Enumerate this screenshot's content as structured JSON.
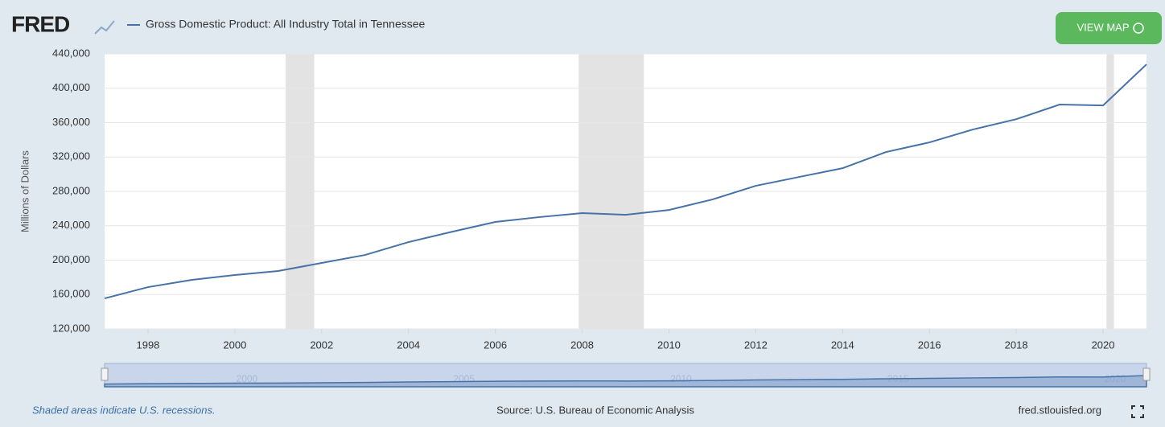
{
  "header": {
    "logo": "FRED",
    "button": "VIEW MAP"
  },
  "chart_data": {
    "type": "line",
    "title": "Gross Domestic Product: All Industry Total in Tennessee",
    "y_label": "Millions of Dollars",
    "x": [
      1997,
      1998,
      1999,
      2000,
      2001,
      2002,
      2003,
      2004,
      2005,
      2006,
      2007,
      2008,
      2009,
      2010,
      2011,
      2012,
      2013,
      2014,
      2015,
      2016,
      2017,
      2018,
      2019,
      2020,
      2021
    ],
    "series": [
      {
        "name": "Gross Domestic Product: All Industry Total in Tennessee",
        "color": "#4572a7",
        "values": [
          155500,
          168600,
          177000,
          182700,
          187400,
          196700,
          206000,
          221000,
          233000,
          244400,
          250000,
          254700,
          252800,
          258400,
          270600,
          286500,
          296800,
          307000,
          325800,
          337000,
          352000,
          364000,
          381000,
          380000,
          427800
        ]
      }
    ],
    "recessions": [
      [
        2001.17,
        2001.83
      ],
      [
        2007.92,
        2009.42
      ],
      [
        2020.08,
        2020.25
      ]
    ],
    "xlim": [
      1997,
      2021
    ],
    "xticks": [
      1998,
      2000,
      2002,
      2004,
      2006,
      2008,
      2010,
      2012,
      2014,
      2016,
      2018,
      2020
    ],
    "ylim": [
      120000,
      440000
    ],
    "yticks": [
      {
        "value": 120000,
        "label": "120,000"
      },
      {
        "value": 160000,
        "label": "160,000"
      },
      {
        "value": 200000,
        "label": "200,000"
      },
      {
        "value": 240000,
        "label": "240,000"
      },
      {
        "value": 280000,
        "label": "280,000"
      },
      {
        "value": 320000,
        "label": "320,000"
      },
      {
        "value": 360000,
        "label": "360,000"
      },
      {
        "value": 400000,
        "label": "400,000"
      },
      {
        "value": 440000,
        "label": "440,000"
      }
    ],
    "navigator_ticks": [
      2000,
      2005,
      2010,
      2015,
      2020
    ],
    "grid": true
  },
  "footer": {
    "note": "Shaded areas indicate U.S. recessions.",
    "source": "Source: U.S. Bureau of Economic Analysis",
    "site": "fred.stlouisfed.org"
  }
}
